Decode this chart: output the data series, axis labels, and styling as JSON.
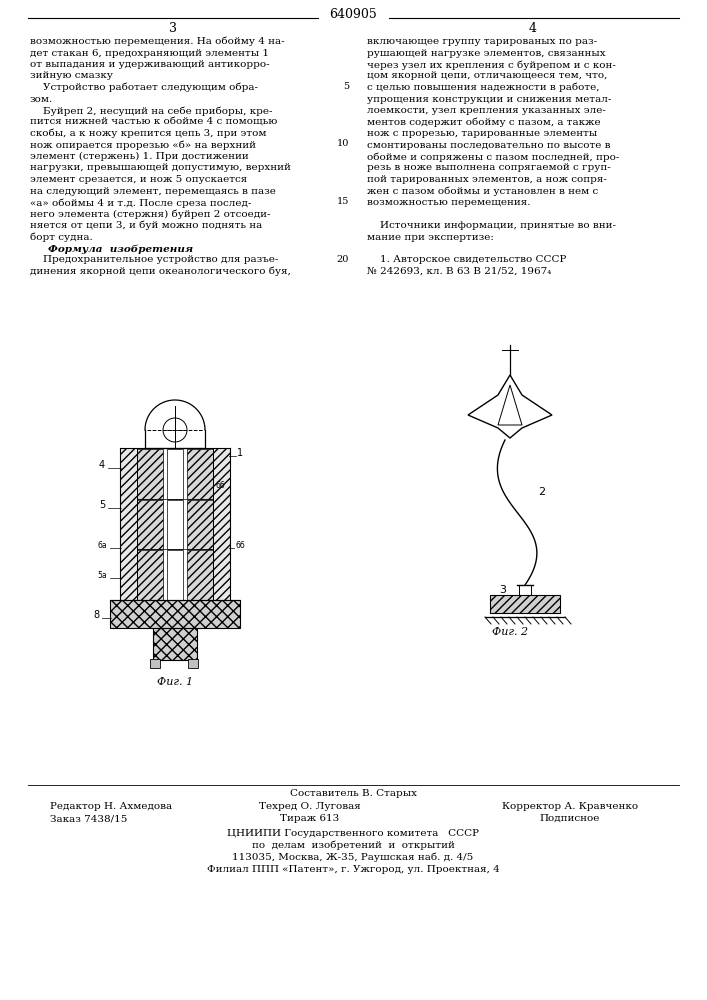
{
  "patent_number": "640905",
  "page_left": "3",
  "page_right": "4",
  "col_left_text": [
    "возможностью перемещения. На обойму 4 на-",
    "дет стакан 6, предохраняющий элементы 1",
    "от выпадания и удерживающий антикорро-",
    "зийную смазку",
    "    Устройство работает следующим обра-",
    "зом.",
    "    Буйреп 2, несущий на себе приборы, кре-",
    "пится нижней частью к обойме 4 с помощью",
    "скобы, а к ножу крепится цепь 3, при этом",
    "нож опирается прорезью «б» на верхний",
    "элемент (стержень) 1. При достижении",
    "нагрузки, превышающей допустимую, верхний",
    "элемент срезается, и нож 5 опускается",
    "на следующий элемент, перемещаясь в пазе",
    "«а» обоймы 4 и т.д. После среза послед-",
    "него элемента (стержня) буйреп 2 отсоеди-",
    "няется от цепи 3, и буй можно поднять на",
    "борт судна.",
    "    Формула  изобретения",
    "    Предохранительное устройство для разъе-",
    "динения якорной цепи океанологического буя,"
  ],
  "col_right_text": [
    "включающее группу тарированых по раз-",
    "рушающей нагрузке элементов, связанных",
    "через узел их крепления с буйрепом и с кон-",
    "цом якорной цепи, отличающееся тем, что,",
    "с целью повышения надежности в работе,",
    "упрощения конструкции и снижения метал-",
    "лоемкости, узел крепления указанных эле-",
    "ментов содержит обойму с пазом, а также",
    "нож с прорезью, тарированные элементы",
    "смонтированы последовательно по высоте в",
    "обойме и сопряжены с пазом последней, про-",
    "резь в ноже выполнена сопрягаемой с груп-",
    "пой тарированных элементов, а нож сопря-",
    "жен с пазом обоймы и установлен в нем с",
    "возможностью перемещения.",
    "",
    "    Источники информации, принятые во вни-",
    "мание при экспертизе:",
    "",
    "    1. Авторское свидетельство СССР",
    "№ 242693, кл. В 63 В 21/52, 1967₄"
  ],
  "line_numbers": [
    5,
    10,
    15,
    20
  ],
  "footer_line1": "Составитель В. Старых",
  "footer_line2_left": "Редактор Н. Ахмедова",
  "footer_line2_mid": "Техред О. Луговая",
  "footer_line2_right": "Корректор А. Кравченко",
  "footer_line3_left": "Заказ 7438/15",
  "footer_line3_mid": "Тираж 613",
  "footer_line3_right": "Подписное",
  "footer_line4": "ЦНИИПИ Государственного комитета   СССР",
  "footer_line5": "по  делам  изобретений  и  открытий",
  "footer_line6": "113035, Москва, Ж-35, Раушская наб. д. 4/5",
  "footer_line7": "Филиал ППП «Патент», г. Ужгород, ул. Проектная, 4",
  "fig1_caption": "Фиг. 1",
  "fig2_caption": "Фиг. 2",
  "bg_color": "#ffffff"
}
